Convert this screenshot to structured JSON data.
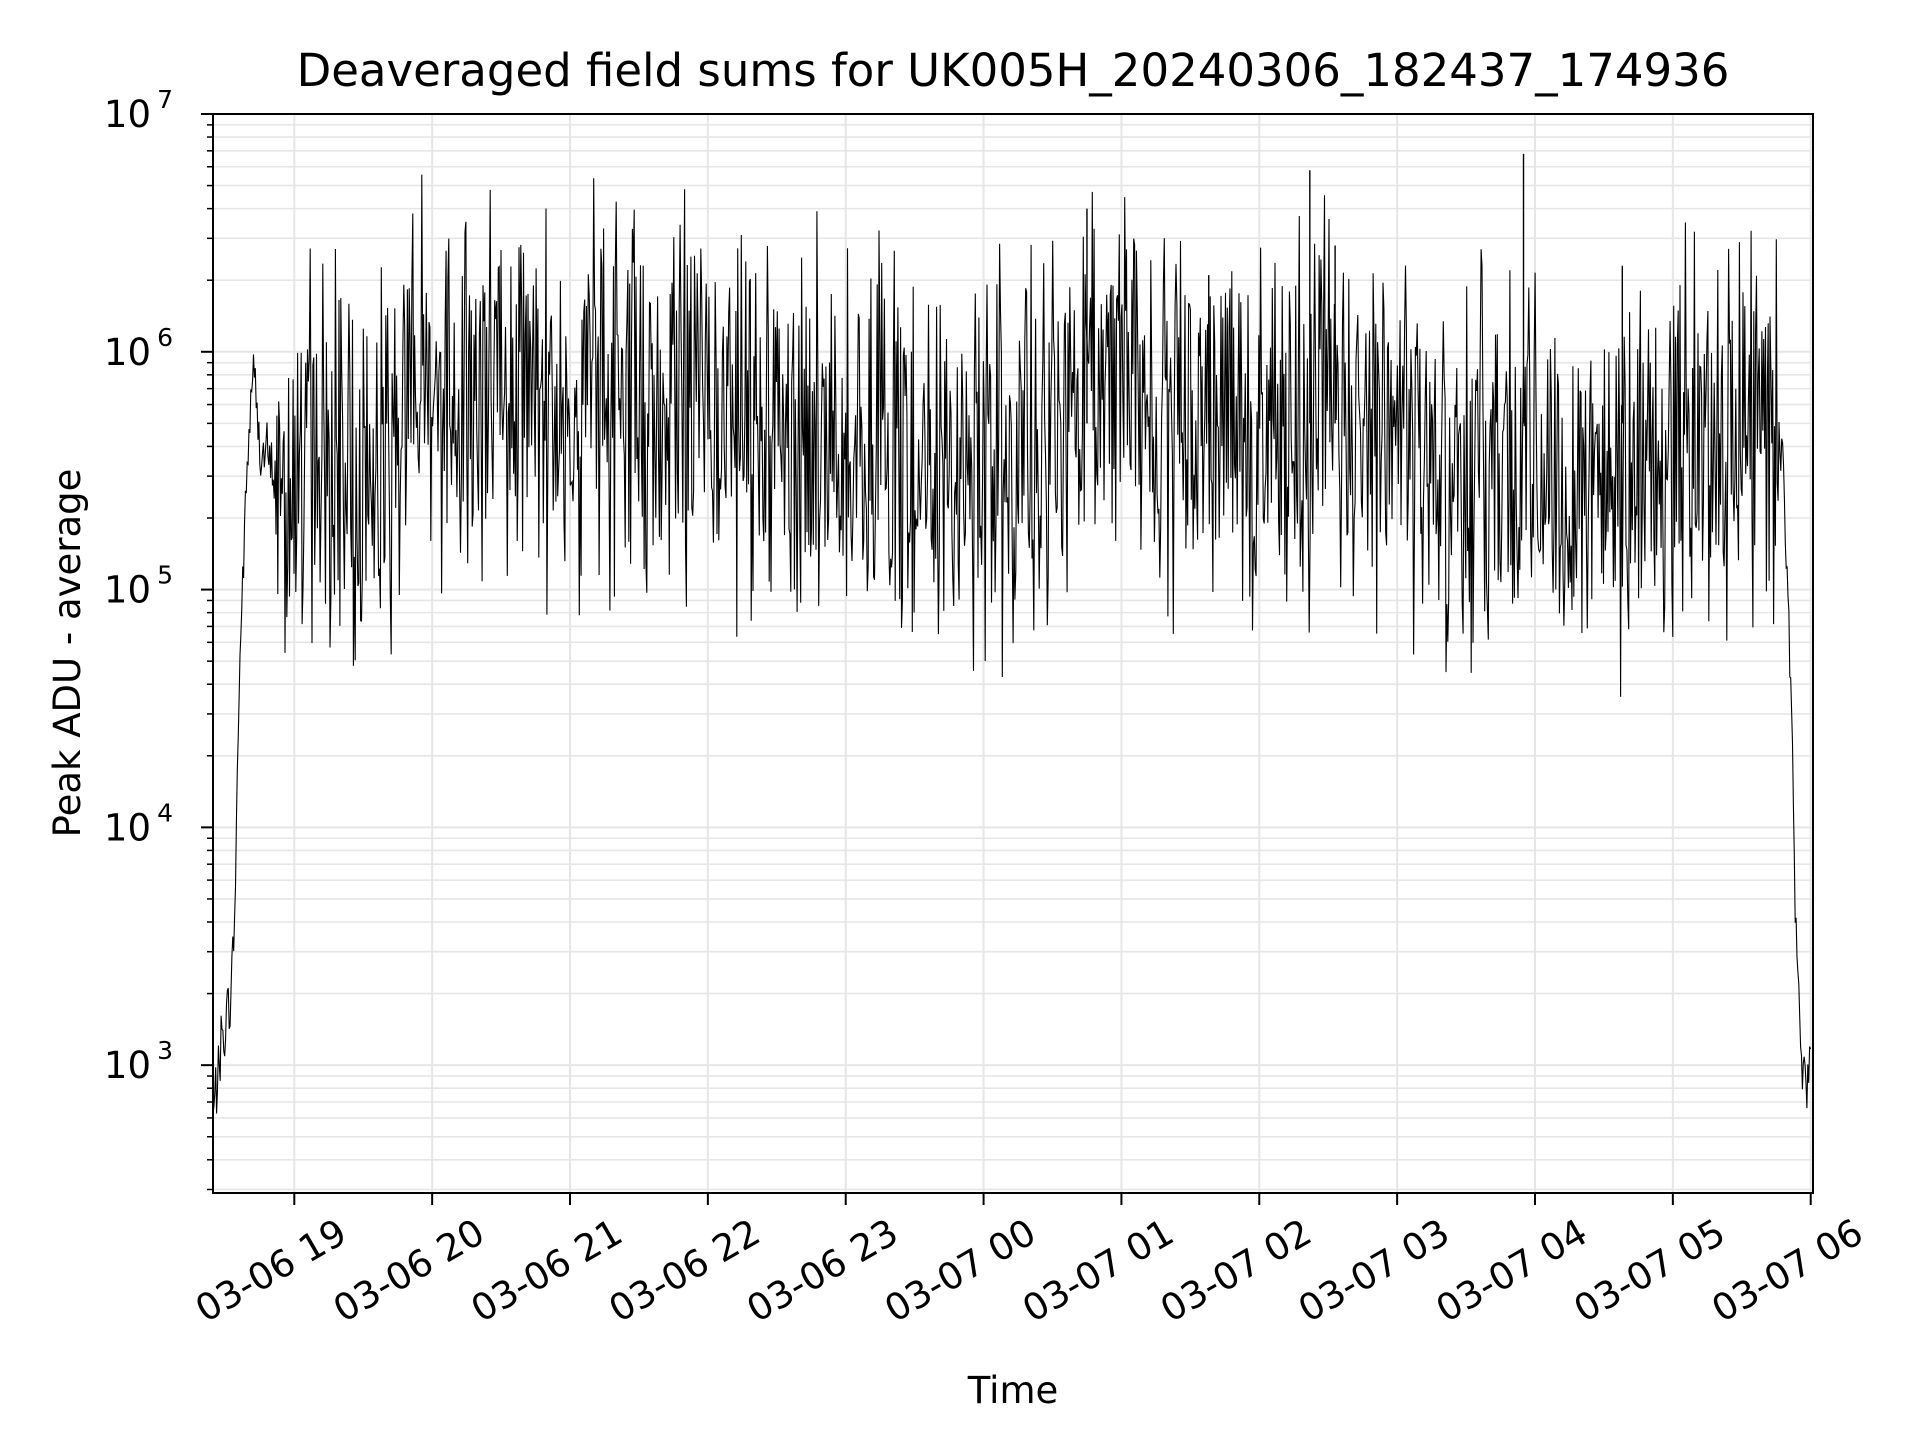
{
  "chart_data": {
    "type": "line",
    "title": "Deaveraged field sums for UK005H_20240306_182437_174936",
    "xlabel": "Time",
    "ylabel": "Peak ADU - average",
    "y_scale": "log",
    "ylim": [
      290,
      10000000
    ],
    "xlim": [
      "2024-03-06 18:24:37",
      "2024-03-07 06:01:00"
    ],
    "x_ticks": [
      {
        "value": "2024-03-06 19:00",
        "label": "03-06 19"
      },
      {
        "value": "2024-03-06 20:00",
        "label": "03-06 20"
      },
      {
        "value": "2024-03-06 21:00",
        "label": "03-06 21"
      },
      {
        "value": "2024-03-06 22:00",
        "label": "03-06 22"
      },
      {
        "value": "2024-03-06 23:00",
        "label": "03-06 23"
      },
      {
        "value": "2024-03-07 00:00",
        "label": "03-07 00"
      },
      {
        "value": "2024-03-07 01:00",
        "label": "03-07 01"
      },
      {
        "value": "2024-03-07 02:00",
        "label": "03-07 02"
      },
      {
        "value": "2024-03-07 03:00",
        "label": "03-07 03"
      },
      {
        "value": "2024-03-07 04:00",
        "label": "03-07 04"
      },
      {
        "value": "2024-03-07 05:00",
        "label": "03-07 05"
      },
      {
        "value": "2024-03-07 06:00",
        "label": "03-07 06"
      }
    ],
    "y_ticks": [
      {
        "value": 1000,
        "base": "10",
        "exp": "3"
      },
      {
        "value": 10000,
        "base": "10",
        "exp": "4"
      },
      {
        "value": 100000,
        "base": "10",
        "exp": "5"
      },
      {
        "value": 1000000,
        "base": "10",
        "exp": "6"
      },
      {
        "value": 10000000,
        "base": "10",
        "exp": "7"
      }
    ],
    "grid": true,
    "line_color": "#000000",
    "grid_color": "#e6e6e6",
    "series": [
      {
        "x": [
          "2024-03-06 18:24:37",
          "2024-03-06 18:26",
          "2024-03-06 18:28",
          "2024-03-06 18:30",
          "2024-03-06 18:32",
          "2024-03-06 18:34",
          "2024-03-06 18:36",
          "2024-03-06 18:38",
          "2024-03-06 18:40",
          "2024-03-06 18:42",
          "2024-03-06 18:44",
          "2024-03-06 18:46",
          "2024-03-06 18:48",
          "2024-03-06 18:50",
          "2024-03-06 18:52",
          "2024-03-06 18:55",
          "2024-03-06 19:00",
          "2024-03-06 19:10",
          "2024-03-06 19:20",
          "2024-03-06 19:30",
          "2024-03-06 19:40",
          "2024-03-06 19:50",
          "2024-03-06 20:00",
          "2024-03-06 20:30",
          "2024-03-06 21:00",
          "2024-03-06 21:30",
          "2024-03-06 22:00",
          "2024-03-06 22:30",
          "2024-03-06 23:00",
          "2024-03-06 23:30",
          "2024-03-07 00:00",
          "2024-03-07 00:30",
          "2024-03-07 00:45",
          "2024-03-07 01:00",
          "2024-03-07 01:30",
          "2024-03-07 02:00",
          "2024-03-07 02:30",
          "2024-03-07 03:00",
          "2024-03-07 03:30",
          "2024-03-07 04:00",
          "2024-03-07 04:30",
          "2024-03-07 05:00",
          "2024-03-07 05:30",
          "2024-03-07 05:45",
          "2024-03-07 05:48",
          "2024-03-07 05:50",
          "2024-03-07 05:52",
          "2024-03-07 05:54",
          "2024-03-07 05:56",
          "2024-03-07 05:58",
          "2024-03-07 06:00"
        ],
        "y": [
          600,
          800,
          1200,
          1500,
          1800,
          4000,
          40000,
          150000,
          400000,
          900000,
          500000,
          350000,
          380000,
          320000,
          300000,
          320000,
          360000,
          340000,
          300000,
          300000,
          330000,
          850000,
          750000,
          700000,
          650000,
          600000,
          550000,
          500000,
          380000,
          330000,
          320000,
          340000,
          800000,
          700000,
          600000,
          450000,
          600000,
          420000,
          330000,
          330000,
          300000,
          380000,
          500000,
          450000,
          350000,
          100000,
          20000,
          2500,
          1000,
          900,
          1000
        ]
      }
    ],
    "spikes": [
      {
        "x": "2024-03-07 00:45",
        "y": 4000000
      },
      {
        "x": "2024-03-07 02:22",
        "y": 5800000
      },
      {
        "x": "2024-03-07 03:55",
        "y": 6800000
      },
      {
        "x": "2024-03-07 04:38",
        "y": 2300000
      },
      {
        "x": "2024-03-07 01:38",
        "y": 2100000
      },
      {
        "x": "2024-03-07 02:33",
        "y": 2800000
      }
    ]
  }
}
